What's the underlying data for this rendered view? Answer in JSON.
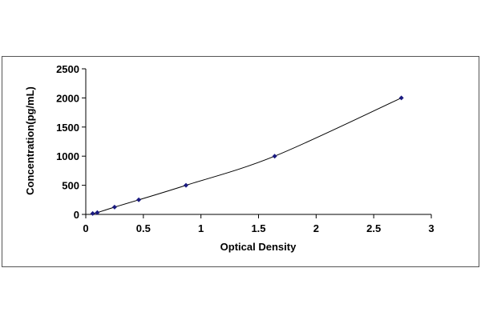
{
  "chart_data": {
    "type": "scatter",
    "title": "",
    "xlabel": "Optical Density",
    "ylabel": "Concentration(pg/mL)",
    "xlim": [
      0,
      3
    ],
    "ylim": [
      0,
      2500
    ],
    "xticks": [
      0,
      0.5,
      1,
      1.5,
      2,
      2.5,
      3
    ],
    "xtick_labels": [
      "0",
      "0.5",
      "1",
      "1.5",
      "2",
      "2.5",
      "3"
    ],
    "yticks": [
      0,
      500,
      1000,
      1500,
      2000,
      2500
    ],
    "ytick_labels": [
      "0",
      "500",
      "1000",
      "1500",
      "2000",
      "2500"
    ],
    "grid": false,
    "legend": "none",
    "marker": "diamond",
    "marker_color": "#1a1a80",
    "line_color": "#000000",
    "trendline": "smooth curve through points",
    "series": [
      {
        "x": [
          0.06,
          0.1,
          0.25,
          0.46,
          0.87,
          1.64,
          2.74
        ],
        "y": [
          15.6,
          31.2,
          125,
          250,
          500,
          1000,
          2000
        ]
      }
    ]
  }
}
